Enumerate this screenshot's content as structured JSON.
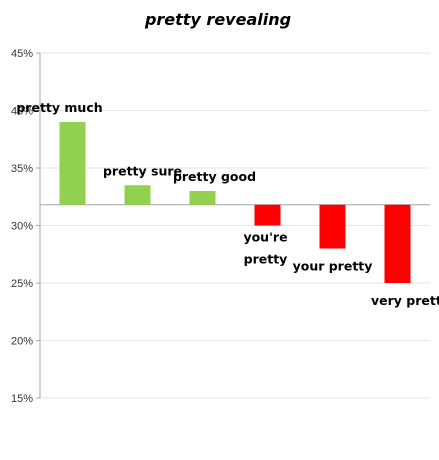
{
  "chart_data": {
    "type": "bar",
    "title": "pretty revealing",
    "xlabel": "",
    "ylabel": "",
    "ylim": [
      15,
      45
    ],
    "y_ticks": [
      15,
      20,
      25,
      30,
      35,
      40,
      45
    ],
    "y_tick_labels": [
      "15%",
      "20%",
      "25%",
      "30%",
      "35%",
      "40%",
      "45%"
    ],
    "baseline": 31.8,
    "grid": true,
    "grid_color": "#e6e6e6",
    "axis_color": "#a6a6a6",
    "positive_color": "#92d050",
    "negative_color": "#ff0000",
    "categories": [
      "pretty much",
      "pretty sure",
      "pretty good",
      "you're pretty",
      "your pretty",
      "very pretty"
    ],
    "values": [
      39,
      33.5,
      33,
      30,
      28,
      25
    ]
  }
}
